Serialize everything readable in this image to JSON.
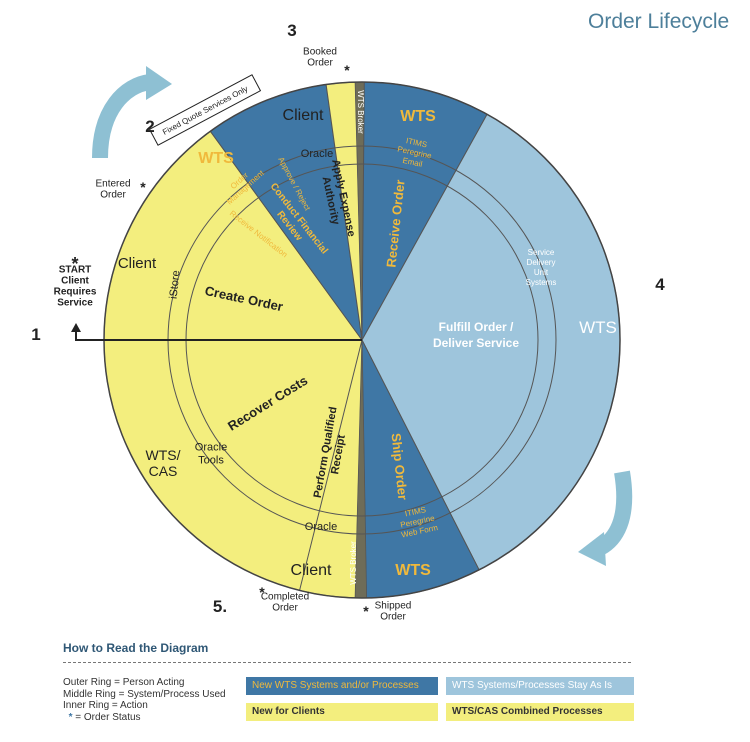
{
  "header": {
    "title": "Order Lifecycle"
  },
  "colors": {
    "yellow": "#f3ee7e",
    "dark_blue": "#3f77a5",
    "light_blue": "#9ec5dc",
    "broker_grey": "#6e6c58",
    "orange_text": "#f0b93c",
    "arrow_blue": "#8ec0d3"
  },
  "diagram": {
    "stage_numbers": [
      "1",
      "2",
      "3",
      "4",
      "5."
    ],
    "status_marker": "*",
    "statuses": {
      "start": [
        "START",
        "Client",
        "Requires",
        "Service"
      ],
      "entered": [
        "Entered",
        "Order"
      ],
      "booked": [
        "Booked",
        "Order"
      ],
      "shipped": [
        "Shipped",
        "Order"
      ],
      "completed": [
        "Completed",
        "Order"
      ]
    },
    "fixed_quote_label": "Fixed Quote Services Only",
    "wts_broker_label": "WTS Broker",
    "outer": {
      "client_left": "Client",
      "wts_2": "WTS",
      "client_top": "Client",
      "wts_receive": "WTS",
      "wts_fulfill": "WTS",
      "wts_ship": "WTS",
      "client_bottom": "Client",
      "wts_cas": [
        "WTS/",
        "CAS"
      ]
    },
    "middle": {
      "istore": "iStore",
      "order_mgmt": [
        "Order",
        "Management"
      ],
      "approve_reject": [
        "Approve / Reject"
      ],
      "oracle_top": "Oracle",
      "itims_receive": [
        "ITIMS",
        "Peregrine",
        "Email"
      ],
      "service_delivery": [
        "Service",
        "Delivery",
        "Unit",
        "Systems"
      ],
      "itims_ship": [
        "ITIMS",
        "Peregrine",
        "Web Form"
      ],
      "oracle_bottom": "Oracle",
      "oracle_tools": [
        "Oracle",
        "Tools"
      ]
    },
    "inner": {
      "create_order": "Create Order",
      "receive_notification": "Receive Notification",
      "conduct_review": [
        "Conduct Financial",
        "Review"
      ],
      "apply_expense": [
        "Apply Expense",
        "Authority"
      ],
      "receive_order": "Receive Order",
      "fulfill": [
        "Fulfill Order /",
        "Deliver Service"
      ],
      "ship_order": "Ship Order",
      "perform_receipt": [
        "Perform Qualified",
        "Receipt"
      ],
      "recover_costs": "Recover Costs"
    }
  },
  "legend": {
    "title": "How to Read the Diagram",
    "key_lines": [
      "Outer Ring = Person Acting",
      "Middle Ring = System/Process Used",
      "Inner Ring = Action"
    ],
    "order_status_key": "= Order Status",
    "swatches": {
      "new_wts": "New WTS Systems and/or Processes",
      "wts_stay": "WTS Systems/Processes Stay As Is",
      "new_clients": "New for Clients",
      "combined": "WTS/CAS Combined Processes"
    }
  }
}
